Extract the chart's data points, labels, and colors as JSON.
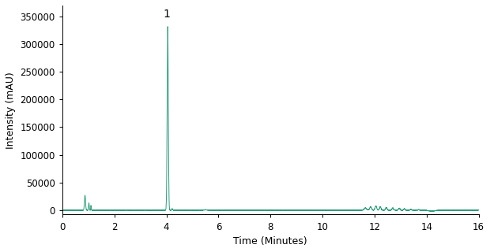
{
  "title": "",
  "xlabel": "Time (Minutes)",
  "ylabel": "Intensity (mAU)",
  "xlim": [
    0,
    16
  ],
  "ylim": [
    -8000,
    370000
  ],
  "yticks": [
    0,
    50000,
    100000,
    150000,
    200000,
    250000,
    300000,
    350000
  ],
  "xticks": [
    0,
    2,
    4,
    6,
    8,
    10,
    12,
    14,
    16
  ],
  "line_color": "#2a9d7a",
  "peak1_label": "1",
  "peak1_x": 4.05,
  "peak1_y": 332000,
  "background_color": "#ffffff",
  "label_fontsize": 9,
  "tick_fontsize": 8.5,
  "annotation_fontsize": 10
}
